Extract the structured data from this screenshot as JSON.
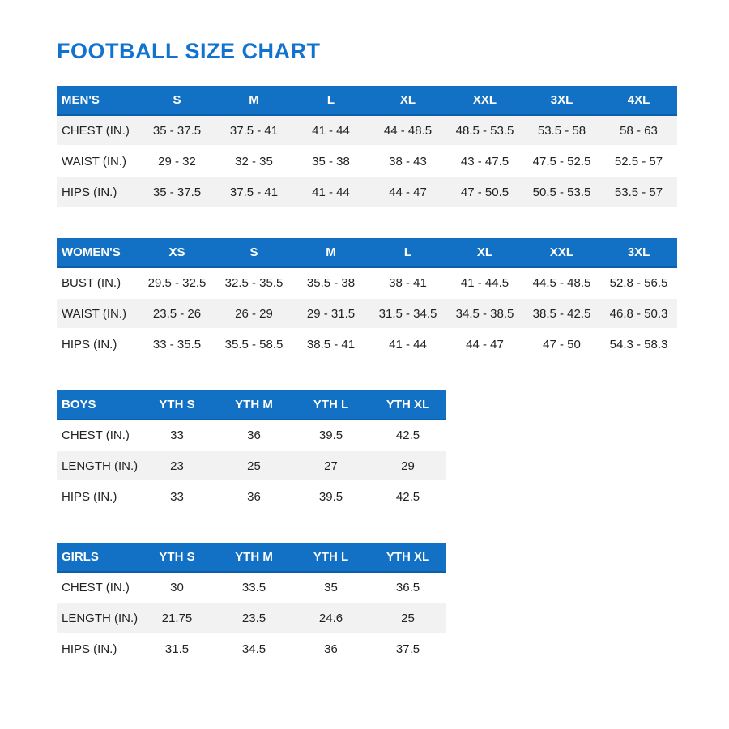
{
  "page": {
    "title": "FOOTBALL SIZE CHART"
  },
  "colors": {
    "title_text": "#1273ce",
    "table_header_bg": "#1271c4",
    "table_header_text": "#ffffff",
    "row_shaded_bg": "#f2f2f3",
    "body_text": "#202325"
  },
  "tables": [
    {
      "name": "MEN'S",
      "wide": true,
      "columns": [
        "S",
        "M",
        "L",
        "XL",
        "XXL",
        "3XL",
        "4XL"
      ],
      "rows": [
        {
          "label": "CHEST (IN.)",
          "shaded": true,
          "values": [
            "35 - 37.5",
            "37.5 - 41",
            "41 - 44",
            "44 - 48.5",
            "48.5 - 53.5",
            "53.5 - 58",
            "58 - 63"
          ]
        },
        {
          "label": "WAIST (IN.)",
          "shaded": false,
          "values": [
            "29 - 32",
            "32 - 35",
            "35 - 38",
            "38 - 43",
            "43 - 47.5",
            "47.5 - 52.5",
            "52.5 - 57"
          ]
        },
        {
          "label": "HIPS (IN.)",
          "shaded": true,
          "values": [
            "35 - 37.5",
            "37.5 - 41",
            "41 - 44",
            "44 - 47",
            "47 - 50.5",
            "50.5 - 53.5",
            "53.5 - 57"
          ]
        }
      ]
    },
    {
      "name": "WOMEN'S",
      "wide": true,
      "columns": [
        "XS",
        "S",
        "M",
        "L",
        "XL",
        "XXL",
        "3XL"
      ],
      "rows": [
        {
          "label": "BUST (IN.)",
          "shaded": false,
          "values": [
            "29.5 - 32.5",
            "32.5 - 35.5",
            "35.5 - 38",
            "38 - 41",
            "41 - 44.5",
            "44.5 - 48.5",
            "52.8 - 56.5"
          ]
        },
        {
          "label": "WAIST (IN.)",
          "shaded": true,
          "values": [
            "23.5 - 26",
            "26 - 29",
            "29 - 31.5",
            "31.5 - 34.5",
            "34.5 - 38.5",
            "38.5 - 42.5",
            "46.8 - 50.3"
          ]
        },
        {
          "label": "HIPS (IN.)",
          "shaded": false,
          "values": [
            "33 - 35.5",
            "35.5 - 58.5",
            "38.5 - 41",
            "41 - 44",
            "44 - 47",
            "47 - 50",
            "54.3 - 58.3"
          ]
        }
      ]
    },
    {
      "name": "BOYS",
      "wide": false,
      "columns": [
        "YTH S",
        "YTH M",
        "YTH L",
        "YTH XL"
      ],
      "rows": [
        {
          "label": "CHEST (IN.)",
          "shaded": false,
          "values": [
            "33",
            "36",
            "39.5",
            "42.5"
          ]
        },
        {
          "label": "LENGTH (IN.)",
          "shaded": true,
          "values": [
            "23",
            "25",
            "27",
            "29"
          ]
        },
        {
          "label": "HIPS (IN.)",
          "shaded": false,
          "values": [
            "33",
            "36",
            "39.5",
            "42.5"
          ]
        }
      ]
    },
    {
      "name": "GIRLS",
      "wide": false,
      "columns": [
        "YTH S",
        "YTH M",
        "YTH L",
        "YTH XL"
      ],
      "rows": [
        {
          "label": "CHEST (IN.)",
          "shaded": false,
          "values": [
            "30",
            "33.5",
            "35",
            "36.5"
          ]
        },
        {
          "label": "LENGTH (IN.)",
          "shaded": true,
          "values": [
            "21.75",
            "23.5",
            "24.6",
            "25"
          ]
        },
        {
          "label": "HIPS (IN.)",
          "shaded": false,
          "values": [
            "31.5",
            "34.5",
            "36",
            "37.5"
          ]
        }
      ]
    }
  ]
}
